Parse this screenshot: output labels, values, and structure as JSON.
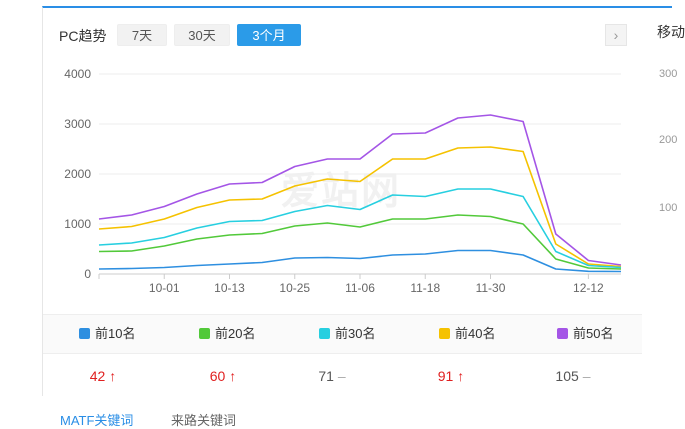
{
  "header": {
    "title": "PC趋势",
    "tabs": [
      {
        "label": "7天",
        "active": false
      },
      {
        "label": "30天",
        "active": false
      },
      {
        "label": "3个月",
        "active": true
      }
    ],
    "next_icon": "chevron-right-icon"
  },
  "watermark": "爱站网",
  "chart_data": {
    "type": "line",
    "ylim": [
      0,
      4000
    ],
    "yticks": [
      0,
      1000,
      2000,
      3000,
      4000
    ],
    "x": [
      "09-19",
      "09-25",
      "10-01",
      "10-07",
      "10-13",
      "10-19",
      "10-25",
      "10-31",
      "11-06",
      "11-12",
      "11-18",
      "11-24",
      "11-30",
      "12-06",
      "12-09",
      "12-12",
      "12-16"
    ],
    "xticks": [
      "10-01",
      "10-13",
      "10-25",
      "11-06",
      "11-18",
      "11-30",
      "12-12"
    ],
    "series": [
      {
        "name": "前10名",
        "color": "#2e8fe0",
        "values": [
          100,
          110,
          130,
          170,
          200,
          230,
          320,
          330,
          310,
          380,
          400,
          470,
          470,
          380,
          100,
          55,
          50
        ]
      },
      {
        "name": "前20名",
        "color": "#52c93a",
        "values": [
          450,
          460,
          560,
          700,
          780,
          810,
          960,
          1020,
          940,
          1100,
          1100,
          1180,
          1150,
          1000,
          300,
          120,
          100
        ]
      },
      {
        "name": "前30名",
        "color": "#27cfe0",
        "values": [
          580,
          620,
          730,
          920,
          1050,
          1070,
          1250,
          1370,
          1290,
          1580,
          1550,
          1700,
          1700,
          1550,
          450,
          170,
          130
        ]
      },
      {
        "name": "前40名",
        "color": "#f5c200",
        "values": [
          900,
          950,
          1100,
          1330,
          1480,
          1500,
          1760,
          1900,
          1850,
          2300,
          2300,
          2520,
          2540,
          2450,
          600,
          200,
          150
        ]
      },
      {
        "name": "前50名",
        "color": "#a455e6",
        "values": [
          1100,
          1180,
          1350,
          1600,
          1800,
          1830,
          2150,
          2300,
          2300,
          2800,
          2820,
          3120,
          3180,
          3050,
          800,
          270,
          180
        ]
      }
    ]
  },
  "stats": [
    {
      "value": "42",
      "trend": "up",
      "arrow": "🡅"
    },
    {
      "value": "60",
      "trend": "up",
      "arrow": "🡅"
    },
    {
      "value": "71",
      "trend": "flat",
      "arrow": "–"
    },
    {
      "value": "91",
      "trend": "up",
      "arrow": "🡅"
    },
    {
      "value": "105",
      "trend": "flat",
      "arrow": "–"
    }
  ],
  "right_panel": {
    "title": "移动",
    "ticks": [
      "300",
      "200",
      "100"
    ]
  },
  "bottom_tabs": [
    {
      "label": "MATF关键词",
      "active": true
    },
    {
      "label": "来路关键词",
      "active": false
    }
  ]
}
